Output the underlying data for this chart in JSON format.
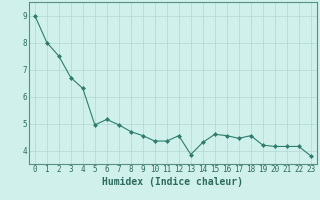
{
  "x": [
    0,
    1,
    2,
    3,
    4,
    5,
    6,
    7,
    8,
    9,
    10,
    11,
    12,
    13,
    14,
    15,
    16,
    17,
    18,
    19,
    20,
    21,
    22,
    23
  ],
  "y": [
    9.0,
    8.0,
    7.5,
    6.7,
    6.3,
    4.95,
    5.15,
    4.95,
    4.7,
    4.55,
    4.35,
    4.35,
    4.55,
    3.85,
    4.3,
    4.6,
    4.55,
    4.45,
    4.55,
    4.2,
    4.15,
    4.15,
    4.15,
    3.8
  ],
  "line_color": "#2e7d6e",
  "marker": "D",
  "marker_size": 2,
  "bg_color": "#cff0eb",
  "grid_color": "#b0d8d0",
  "xlabel": "Humidex (Indice chaleur)",
  "xlim": [
    -0.5,
    23.5
  ],
  "ylim": [
    3.5,
    9.5
  ],
  "yticks": [
    4,
    5,
    6,
    7,
    8,
    9
  ],
  "xticks": [
    0,
    1,
    2,
    3,
    4,
    5,
    6,
    7,
    8,
    9,
    10,
    11,
    12,
    13,
    14,
    15,
    16,
    17,
    18,
    19,
    20,
    21,
    22,
    23
  ],
  "tick_label_size": 5.5,
  "xlabel_size": 7,
  "axis_color": "#2e6b5e",
  "spine_color": "#5a9080",
  "grid_linewidth": 0.5
}
